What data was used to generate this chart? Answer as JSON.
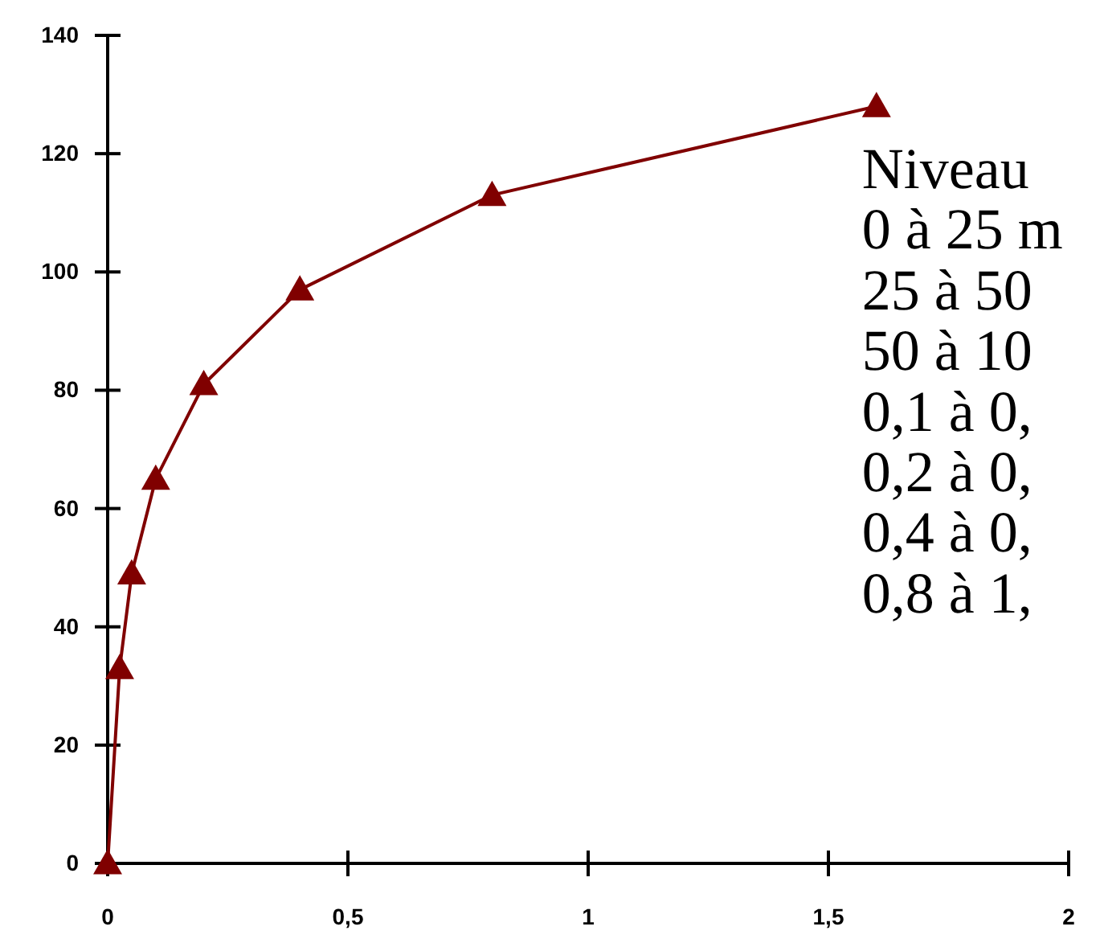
{
  "chart_data": {
    "type": "line",
    "x": [
      0,
      0.025,
      0.05,
      0.1,
      0.2,
      0.4,
      0.8,
      1.6
    ],
    "series": [
      {
        "color": "#800000",
        "values": [
          0,
          33,
          49,
          65,
          81,
          97,
          113,
          128
        ]
      }
    ],
    "xlim": [
      0,
      2
    ],
    "xticks": [
      0,
      {
        "value": 0.5,
        "label": "0,5"
      },
      1,
      {
        "value": 1.5,
        "label": "1,5"
      },
      2
    ],
    "ylim": [
      0,
      140
    ],
    "yticks": [
      0,
      20,
      40,
      60,
      80,
      100,
      120,
      140
    ],
    "grid": false,
    "marker": "triangle",
    "line_style": "solid",
    "annotations": [
      "Niveau",
      "0 à 25 m",
      "25 à 50",
      "50 à 10",
      "0,1 à 0,",
      "0,2 à 0,",
      "0,4 à 0,",
      "0,8 à 1,"
    ]
  }
}
